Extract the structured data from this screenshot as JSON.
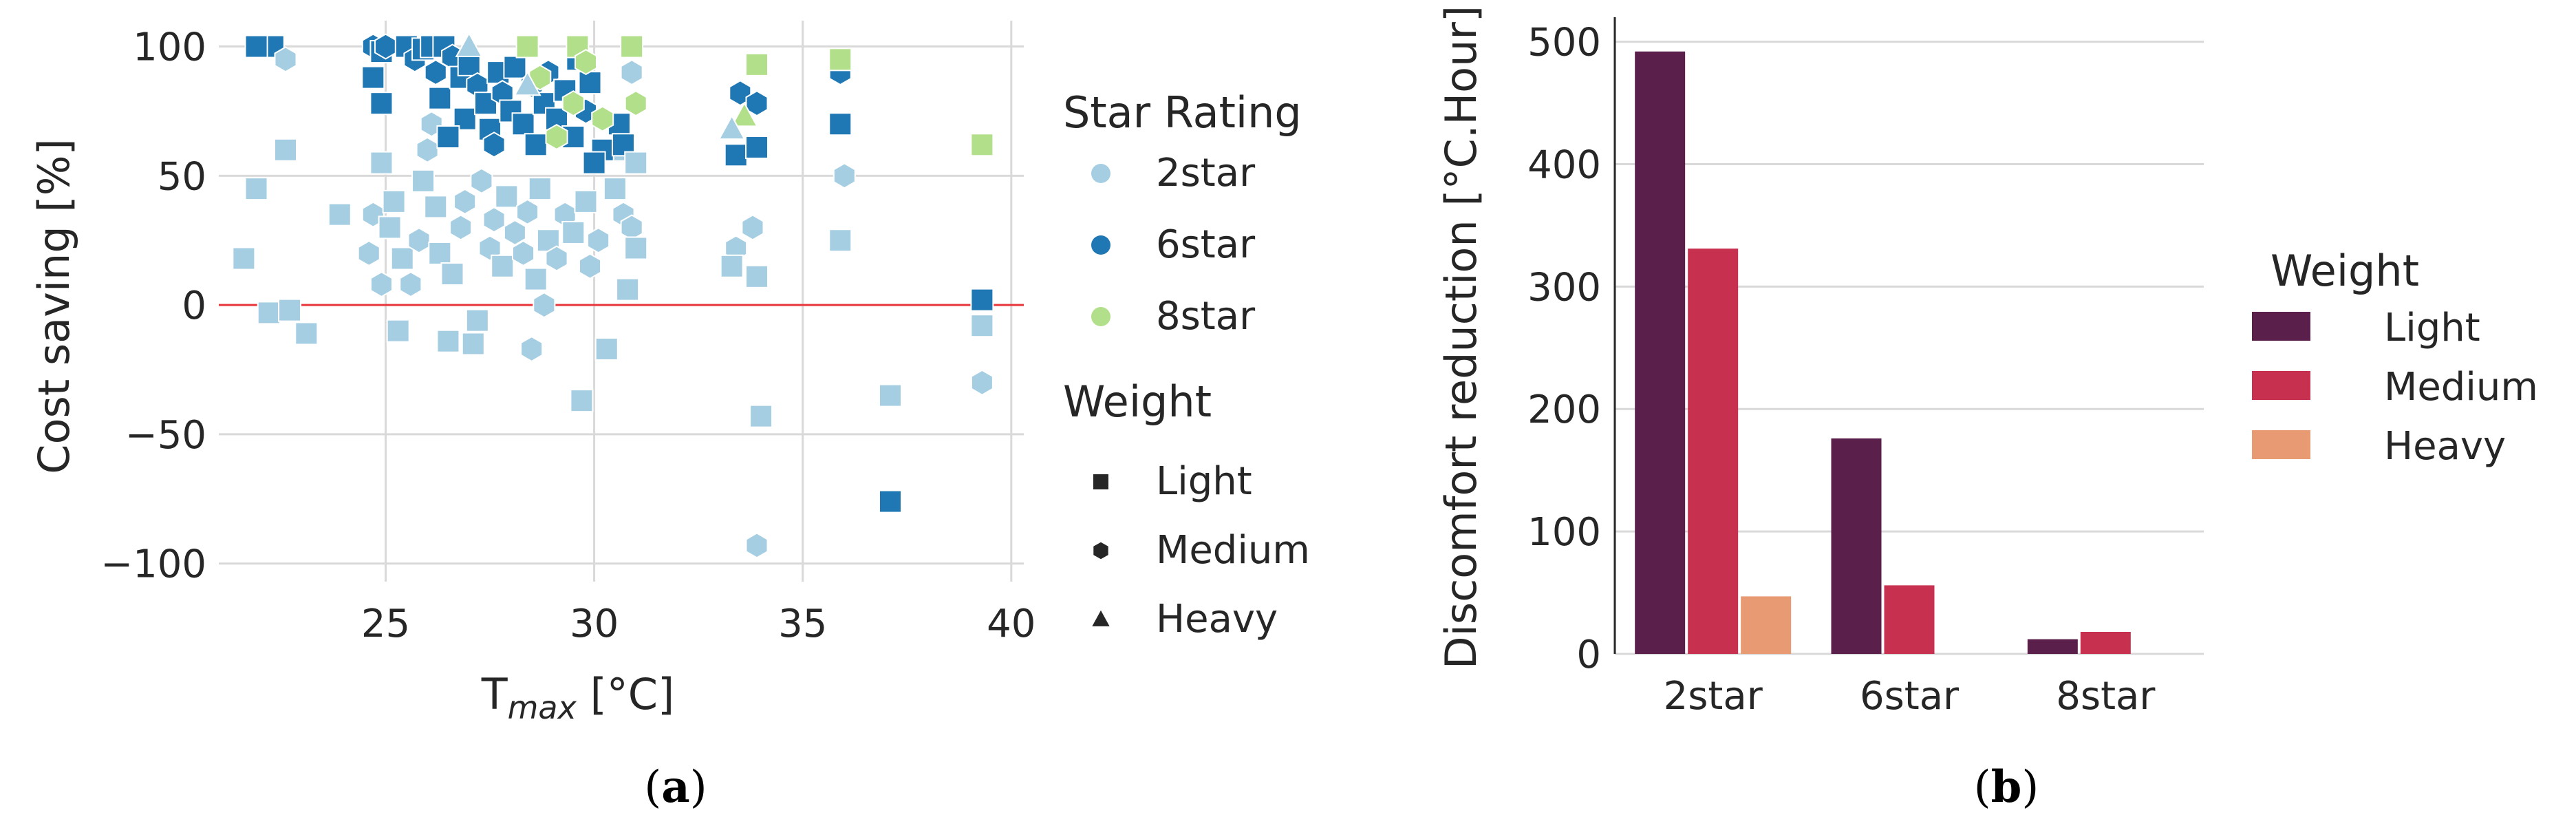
{
  "panels": {
    "a": {
      "open": "(",
      "letter": "a",
      "close": ")"
    },
    "b": {
      "open": "(",
      "letter": "b",
      "close": ")"
    }
  },
  "chart_data": [
    {
      "type": "scatter",
      "xlabel_main": "T",
      "xlabel_sub": "max",
      "xlabel_unit": " [°C]",
      "ylabel": "Cost saving [%]",
      "xlim": [
        21,
        40.3
      ],
      "ylim": [
        -107,
        110
      ],
      "xticks": [
        25,
        30,
        35,
        40
      ],
      "yticks": [
        100,
        50,
        0,
        -50,
        -100
      ],
      "ytick_labels": [
        "100",
        "50",
        "0",
        "−50",
        "−100"
      ],
      "grid": true,
      "reference_line": {
        "y": 0,
        "color": "#e8383d"
      },
      "legend": {
        "placement": "right",
        "star_title": "Star Rating",
        "stars": [
          {
            "label": "2star",
            "color": "#a6cee3"
          },
          {
            "label": "6star",
            "color": "#1f78b4"
          },
          {
            "label": "8star",
            "color": "#b2df8a"
          }
        ],
        "weight_title": "Weight",
        "weights": [
          {
            "label": "Light",
            "marker": "square"
          },
          {
            "label": "Medium",
            "marker": "hexagon"
          },
          {
            "label": "Heavy",
            "marker": "triangle"
          }
        ]
      },
      "points": [
        {
          "x": 22.3,
          "y": 100,
          "star": "6star",
          "w": "Light"
        },
        {
          "x": 21.9,
          "y": 100,
          "star": "6star",
          "w": "Light"
        },
        {
          "x": 22.6,
          "y": 95,
          "star": "2star",
          "w": "Medium"
        },
        {
          "x": 22.6,
          "y": 60,
          "star": "2star",
          "w": "Light"
        },
        {
          "x": 21.9,
          "y": 45,
          "star": "2star",
          "w": "Light"
        },
        {
          "x": 21.6,
          "y": 18,
          "star": "2star",
          "w": "Light"
        },
        {
          "x": 22.2,
          "y": -3,
          "star": "2star",
          "w": "Light"
        },
        {
          "x": 22.7,
          "y": -2,
          "star": "2star",
          "w": "Light"
        },
        {
          "x": 23.1,
          "y": -11,
          "star": "2star",
          "w": "Light"
        },
        {
          "x": 23.9,
          "y": 35,
          "star": "2star",
          "w": "Light"
        },
        {
          "x": 24.6,
          "y": 20,
          "star": "2star",
          "w": "Medium"
        },
        {
          "x": 24.7,
          "y": 35,
          "star": "2star",
          "w": "Medium"
        },
        {
          "x": 24.9,
          "y": 55,
          "star": "2star",
          "w": "Light"
        },
        {
          "x": 24.9,
          "y": 8,
          "star": "2star",
          "w": "Medium"
        },
        {
          "x": 25.1,
          "y": 30,
          "star": "2star",
          "w": "Light"
        },
        {
          "x": 25.2,
          "y": 40,
          "star": "2star",
          "w": "Light"
        },
        {
          "x": 25.4,
          "y": 18,
          "star": "2star",
          "w": "Light"
        },
        {
          "x": 25.3,
          "y": -10,
          "star": "2star",
          "w": "Light"
        },
        {
          "x": 25.6,
          "y": 8,
          "star": "2star",
          "w": "Medium"
        },
        {
          "x": 25.8,
          "y": 25,
          "star": "2star",
          "w": "Medium"
        },
        {
          "x": 25.9,
          "y": 48,
          "star": "2star",
          "w": "Light"
        },
        {
          "x": 26.0,
          "y": 60,
          "star": "2star",
          "w": "Medium"
        },
        {
          "x": 26.1,
          "y": 70,
          "star": "2star",
          "w": "Medium"
        },
        {
          "x": 26.2,
          "y": 38,
          "star": "2star",
          "w": "Light"
        },
        {
          "x": 26.3,
          "y": 20,
          "star": "2star",
          "w": "Light"
        },
        {
          "x": 26.5,
          "y": -14,
          "star": "2star",
          "w": "Light"
        },
        {
          "x": 26.6,
          "y": 12,
          "star": "2star",
          "w": "Light"
        },
        {
          "x": 26.8,
          "y": 30,
          "star": "2star",
          "w": "Medium"
        },
        {
          "x": 26.9,
          "y": 40,
          "star": "2star",
          "w": "Medium"
        },
        {
          "x": 27.1,
          "y": -15,
          "star": "2star",
          "w": "Light"
        },
        {
          "x": 27.2,
          "y": -6,
          "star": "2star",
          "w": "Light"
        },
        {
          "x": 27.3,
          "y": 48,
          "star": "2star",
          "w": "Medium"
        },
        {
          "x": 27.5,
          "y": 22,
          "star": "2star",
          "w": "Medium"
        },
        {
          "x": 27.6,
          "y": 33,
          "star": "2star",
          "w": "Medium"
        },
        {
          "x": 27.8,
          "y": 15,
          "star": "2star",
          "w": "Light"
        },
        {
          "x": 27.9,
          "y": 42,
          "star": "2star",
          "w": "Light"
        },
        {
          "x": 28.1,
          "y": 28,
          "star": "2star",
          "w": "Medium"
        },
        {
          "x": 28.3,
          "y": 20,
          "star": "2star",
          "w": "Medium"
        },
        {
          "x": 28.4,
          "y": 36,
          "star": "2star",
          "w": "Medium"
        },
        {
          "x": 28.5,
          "y": -17,
          "star": "2star",
          "w": "Medium"
        },
        {
          "x": 28.6,
          "y": 10,
          "star": "2star",
          "w": "Light"
        },
        {
          "x": 28.7,
          "y": 45,
          "star": "2star",
          "w": "Light"
        },
        {
          "x": 28.8,
          "y": 0,
          "star": "2star",
          "w": "Medium"
        },
        {
          "x": 28.9,
          "y": 25,
          "star": "2star",
          "w": "Light"
        },
        {
          "x": 29.1,
          "y": 18,
          "star": "2star",
          "w": "Medium"
        },
        {
          "x": 29.3,
          "y": 35,
          "star": "2star",
          "w": "Medium"
        },
        {
          "x": 29.5,
          "y": 28,
          "star": "2star",
          "w": "Light"
        },
        {
          "x": 29.7,
          "y": -37,
          "star": "2star",
          "w": "Light"
        },
        {
          "x": 29.8,
          "y": 40,
          "star": "2star",
          "w": "Light"
        },
        {
          "x": 29.9,
          "y": 15,
          "star": "2star",
          "w": "Medium"
        },
        {
          "x": 30.1,
          "y": 25,
          "star": "2star",
          "w": "Medium"
        },
        {
          "x": 30.3,
          "y": -17,
          "star": "2star",
          "w": "Light"
        },
        {
          "x": 30.5,
          "y": 45,
          "star": "2star",
          "w": "Light"
        },
        {
          "x": 30.7,
          "y": 35,
          "star": "2star",
          "w": "Medium"
        },
        {
          "x": 30.8,
          "y": 6,
          "star": "2star",
          "w": "Light"
        },
        {
          "x": 30.9,
          "y": 30,
          "star": "2star",
          "w": "Medium"
        },
        {
          "x": 31.0,
          "y": 22,
          "star": "2star",
          "w": "Light"
        },
        {
          "x": 30.6,
          "y": 60,
          "star": "2star",
          "w": "Light"
        },
        {
          "x": 33.4,
          "y": 22,
          "star": "2star",
          "w": "Medium"
        },
        {
          "x": 33.3,
          "y": 15,
          "star": "2star",
          "w": "Light"
        },
        {
          "x": 33.8,
          "y": 30,
          "star": "2star",
          "w": "Medium"
        },
        {
          "x": 33.9,
          "y": 11,
          "star": "2star",
          "w": "Light"
        },
        {
          "x": 34.0,
          "y": -43,
          "star": "2star",
          "w": "Light"
        },
        {
          "x": 33.9,
          "y": -93,
          "star": "2star",
          "w": "Medium"
        },
        {
          "x": 36.0,
          "y": 50,
          "star": "2star",
          "w": "Medium"
        },
        {
          "x": 35.9,
          "y": 25,
          "star": "2star",
          "w": "Light"
        },
        {
          "x": 37.1,
          "y": -35,
          "star": "2star",
          "w": "Light"
        },
        {
          "x": 39.3,
          "y": -8,
          "star": "2star",
          "w": "Light"
        },
        {
          "x": 39.3,
          "y": -30,
          "star": "2star",
          "w": "Medium"
        },
        {
          "x": 24.7,
          "y": 100,
          "star": "6star",
          "w": "Medium"
        },
        {
          "x": 24.9,
          "y": 98,
          "star": "6star",
          "w": "Light"
        },
        {
          "x": 25.0,
          "y": 100,
          "star": "6star",
          "w": "Medium"
        },
        {
          "x": 24.7,
          "y": 88,
          "star": "6star",
          "w": "Light"
        },
        {
          "x": 24.9,
          "y": 78,
          "star": "6star",
          "w": "Light"
        },
        {
          "x": 25.5,
          "y": 100,
          "star": "6star",
          "w": "Light"
        },
        {
          "x": 25.7,
          "y": 95,
          "star": "6star",
          "w": "Medium"
        },
        {
          "x": 25.9,
          "y": 99,
          "star": "6star",
          "w": "Light"
        },
        {
          "x": 26.1,
          "y": 100,
          "star": "6star",
          "w": "Light"
        },
        {
          "x": 26.2,
          "y": 90,
          "star": "6star",
          "w": "Medium"
        },
        {
          "x": 26.3,
          "y": 80,
          "star": "6star",
          "w": "Light"
        },
        {
          "x": 26.4,
          "y": 100,
          "star": "6star",
          "w": "Light"
        },
        {
          "x": 26.6,
          "y": 96,
          "star": "6star",
          "w": "Medium"
        },
        {
          "x": 26.8,
          "y": 88,
          "star": "6star",
          "w": "Light"
        },
        {
          "x": 26.9,
          "y": 72,
          "star": "6star",
          "w": "Light"
        },
        {
          "x": 27.0,
          "y": 93,
          "star": "6star",
          "w": "Light"
        },
        {
          "x": 27.2,
          "y": 85,
          "star": "6star",
          "w": "Medium"
        },
        {
          "x": 27.4,
          "y": 78,
          "star": "6star",
          "w": "Light"
        },
        {
          "x": 27.5,
          "y": 68,
          "star": "6star",
          "w": "Light"
        },
        {
          "x": 27.7,
          "y": 90,
          "star": "6star",
          "w": "Light"
        },
        {
          "x": 27.8,
          "y": 82,
          "star": "6star",
          "w": "Medium"
        },
        {
          "x": 28.0,
          "y": 75,
          "star": "6star",
          "w": "Light"
        },
        {
          "x": 28.1,
          "y": 92,
          "star": "6star",
          "w": "Light"
        },
        {
          "x": 28.3,
          "y": 70,
          "star": "6star",
          "w": "Light"
        },
        {
          "x": 28.5,
          "y": 85,
          "star": "6star",
          "w": "Medium"
        },
        {
          "x": 28.6,
          "y": 62,
          "star": "6star",
          "w": "Light"
        },
        {
          "x": 28.8,
          "y": 78,
          "star": "6star",
          "w": "Light"
        },
        {
          "x": 28.9,
          "y": 90,
          "star": "6star",
          "w": "Medium"
        },
        {
          "x": 29.1,
          "y": 72,
          "star": "6star",
          "w": "Light"
        },
        {
          "x": 29.3,
          "y": 83,
          "star": "6star",
          "w": "Light"
        },
        {
          "x": 29.5,
          "y": 65,
          "star": "6star",
          "w": "Light"
        },
        {
          "x": 29.6,
          "y": 95,
          "star": "6star",
          "w": "Light"
        },
        {
          "x": 29.8,
          "y": 75,
          "star": "6star",
          "w": "Medium"
        },
        {
          "x": 29.9,
          "y": 86,
          "star": "6star",
          "w": "Light"
        },
        {
          "x": 30.2,
          "y": 60,
          "star": "6star",
          "w": "Light"
        },
        {
          "x": 30.0,
          "y": 55,
          "star": "6star",
          "w": "Light"
        },
        {
          "x": 30.6,
          "y": 70,
          "star": "6star",
          "w": "Light"
        },
        {
          "x": 30.7,
          "y": 62,
          "star": "6star",
          "w": "Light"
        },
        {
          "x": 33.4,
          "y": 58,
          "star": "6star",
          "w": "Light"
        },
        {
          "x": 33.9,
          "y": 61,
          "star": "6star",
          "w": "Light"
        },
        {
          "x": 33.5,
          "y": 82,
          "star": "6star",
          "w": "Medium"
        },
        {
          "x": 33.9,
          "y": 78,
          "star": "6star",
          "w": "Medium"
        },
        {
          "x": 35.9,
          "y": 90,
          "star": "6star",
          "w": "Medium"
        },
        {
          "x": 35.9,
          "y": 70,
          "star": "6star",
          "w": "Light"
        },
        {
          "x": 37.1,
          "y": -76,
          "star": "6star",
          "w": "Light"
        },
        {
          "x": 39.3,
          "y": 2,
          "star": "6star",
          "w": "Light"
        },
        {
          "x": 27.6,
          "y": 62,
          "star": "6star",
          "w": "Medium"
        },
        {
          "x": 26.5,
          "y": 65,
          "star": "6star",
          "w": "Light"
        },
        {
          "x": 28.4,
          "y": 100,
          "star": "8star",
          "w": "Light"
        },
        {
          "x": 28.7,
          "y": 88,
          "star": "8star",
          "w": "Medium"
        },
        {
          "x": 29.1,
          "y": 65,
          "star": "8star",
          "w": "Medium"
        },
        {
          "x": 29.5,
          "y": 78,
          "star": "8star",
          "w": "Medium"
        },
        {
          "x": 29.6,
          "y": 100,
          "star": "8star",
          "w": "Light"
        },
        {
          "x": 29.8,
          "y": 94,
          "star": "8star",
          "w": "Medium"
        },
        {
          "x": 30.2,
          "y": 72,
          "star": "8star",
          "w": "Medium"
        },
        {
          "x": 30.9,
          "y": 100,
          "star": "8star",
          "w": "Light"
        },
        {
          "x": 31.0,
          "y": 78,
          "star": "8star",
          "w": "Medium"
        },
        {
          "x": 33.6,
          "y": 73,
          "star": "8star",
          "w": "Heavy"
        },
        {
          "x": 33.9,
          "y": 93,
          "star": "8star",
          "w": "Light"
        },
        {
          "x": 35.9,
          "y": 95,
          "star": "8star",
          "w": "Light"
        },
        {
          "x": 39.3,
          "y": 62,
          "star": "8star",
          "w": "Light"
        },
        {
          "x": 27.0,
          "y": 100,
          "star": "2star",
          "w": "Heavy"
        },
        {
          "x": 28.4,
          "y": 85,
          "star": "2star",
          "w": "Heavy"
        },
        {
          "x": 30.9,
          "y": 90,
          "star": "2star",
          "w": "Medium"
        },
        {
          "x": 31.0,
          "y": 55,
          "star": "2star",
          "w": "Light"
        },
        {
          "x": 33.3,
          "y": 68,
          "star": "2star",
          "w": "Heavy"
        }
      ]
    },
    {
      "type": "bar",
      "ylabel": "Discomfort reduction [°C.Hour]",
      "xlabel": "",
      "categories": [
        "2star",
        "6star",
        "8star"
      ],
      "ylim": [
        0,
        520
      ],
      "yticks": [
        0,
        100,
        200,
        300,
        400,
        500
      ],
      "grid": true,
      "legend": {
        "placement": "right",
        "title": "Weight"
      },
      "series": [
        {
          "name": "Light",
          "color": "#5a1f4b",
          "values": [
            492,
            176,
            12
          ]
        },
        {
          "name": "Medium",
          "color": "#c8304f",
          "values": [
            331,
            56,
            18
          ]
        },
        {
          "name": "Heavy",
          "color": "#e89a72",
          "values": [
            47,
            0,
            0
          ]
        }
      ]
    }
  ]
}
